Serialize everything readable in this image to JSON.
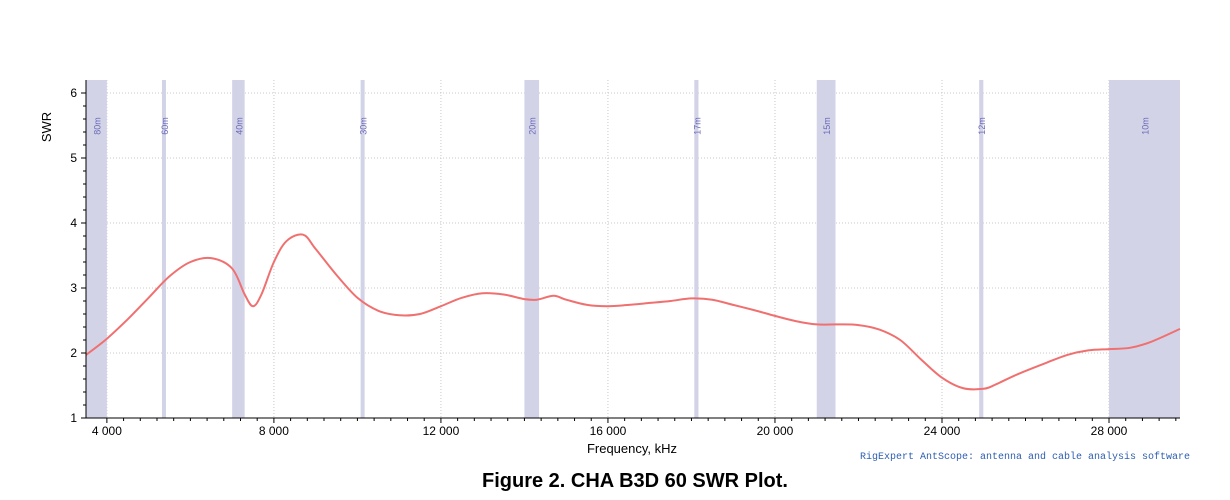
{
  "caption": "Figure 2.  CHA B3D 60 SWR Plot.",
  "credit": "RigExpert AntScope: antenna and cable analysis software",
  "chart_data": {
    "type": "line",
    "xlabel": "Frequency, kHz",
    "ylabel": "SWR",
    "xlim": [
      3500,
      29700
    ],
    "ylim": [
      1,
      6.2
    ],
    "xticks": [
      4000,
      8000,
      12000,
      16000,
      20000,
      24000,
      28000
    ],
    "xtick_labels": [
      "4 000",
      "8 000",
      "12 000",
      "16 000",
      "20 000",
      "24 000",
      "28 000"
    ],
    "yticks": [
      1,
      2,
      3,
      4,
      5,
      6
    ],
    "ytick_labels": [
      "1",
      "2",
      "3",
      "4",
      "5",
      "6"
    ],
    "grid": true,
    "bands": [
      {
        "label": "80m",
        "start": 3500,
        "end": 4000
      },
      {
        "label": "60m",
        "start": 5330,
        "end": 5405
      },
      {
        "label": "40m",
        "start": 7000,
        "end": 7300
      },
      {
        "label": "30m",
        "start": 10100,
        "end": 10150
      },
      {
        "label": "20m",
        "start": 14000,
        "end": 14350
      },
      {
        "label": "17m",
        "start": 18068,
        "end": 18168
      },
      {
        "label": "15m",
        "start": 21000,
        "end": 21450
      },
      {
        "label": "12m",
        "start": 24890,
        "end": 24990
      },
      {
        "label": "10m",
        "start": 28000,
        "end": 29700
      }
    ],
    "series": [
      {
        "color": "#f07070",
        "x": [
          3500,
          4000,
          4500,
          5000,
          5500,
          6000,
          6500,
          7000,
          7300,
          7500,
          7700,
          8000,
          8300,
          8700,
          9000,
          9500,
          10000,
          10500,
          11000,
          11500,
          12000,
          12500,
          13000,
          13500,
          14000,
          14300,
          14700,
          15000,
          15500,
          16000,
          16500,
          17000,
          17500,
          18000,
          18500,
          19000,
          19500,
          20000,
          20500,
          21000,
          21500,
          22000,
          22500,
          23000,
          23500,
          24000,
          24500,
          25000,
          25300,
          25800,
          26500,
          27000,
          27500,
          28000,
          28500,
          29000,
          29700
        ],
        "y": [
          1.97,
          2.22,
          2.52,
          2.85,
          3.18,
          3.4,
          3.46,
          3.3,
          2.9,
          2.72,
          2.9,
          3.4,
          3.72,
          3.82,
          3.6,
          3.2,
          2.85,
          2.65,
          2.58,
          2.6,
          2.72,
          2.85,
          2.92,
          2.9,
          2.83,
          2.82,
          2.88,
          2.82,
          2.74,
          2.72,
          2.74,
          2.77,
          2.8,
          2.84,
          2.82,
          2.74,
          2.66,
          2.57,
          2.49,
          2.44,
          2.44,
          2.43,
          2.36,
          2.2,
          1.9,
          1.62,
          1.46,
          1.45,
          1.52,
          1.67,
          1.85,
          1.97,
          2.04,
          2.06,
          2.08,
          2.17,
          2.37
        ]
      }
    ]
  }
}
